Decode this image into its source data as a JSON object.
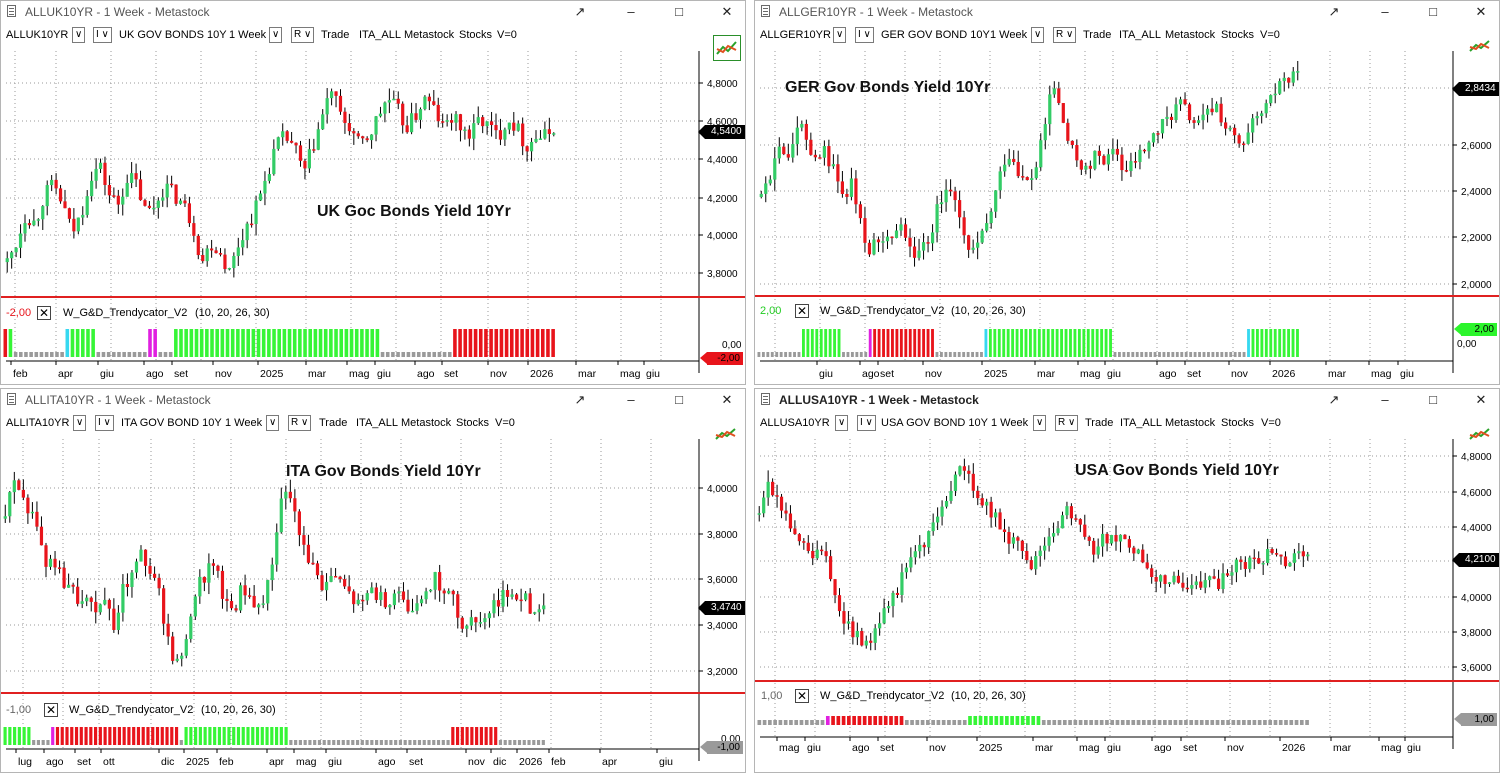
{
  "colors": {
    "up": "#33cc66",
    "down": "#e8141b",
    "separator": "#e02020",
    "ind_green": "#36f536",
    "ind_red": "#e8141b",
    "ind_gray": "#9a9a9a",
    "ind_magenta": "#e020e0",
    "ind_cyan": "#36d8f0"
  },
  "windows": [
    {
      "id": "uk",
      "title": "ALLUK10YR - 1 Week - Metastock",
      "symbol": "ALLUK10YR",
      "interval_box": "I",
      "name": "UK GOV BONDS 10Y",
      "period": "1 Week",
      "mode_box": "R",
      "trade": "Trade",
      "list": "ITA_ALL",
      "source": "Metastock",
      "group": "Stocks",
      "version": "V=0",
      "annotation": "UK Goc Bonds Yield 10Yr",
      "price_tag": "4,5400",
      "y_ticks": [
        "4,8000",
        "4,6000",
        "4,4000",
        "4,2000",
        "4,0000",
        "3,8000"
      ],
      "indicator_value": "-2,00",
      "indicator_name": "W_G&D_Trendycator_V2",
      "indicator_params": "(10,  20,  26,  30)",
      "indicator_zero": "0,00",
      "indicator_tag": "-2,00",
      "indicator_tag_color": "red",
      "x_labels": [
        "feb",
        "apr",
        "giu",
        "ago",
        "set",
        "nov",
        "2025",
        "mar",
        "mag",
        "giu",
        "ago",
        "set",
        "nov",
        "2026",
        "mar",
        "mag",
        "giu"
      ]
    },
    {
      "id": "ger",
      "title": "ALLGER10YR - 1 Week - Metastock",
      "symbol": "ALLGER10YR",
      "interval_box": "I",
      "name": "GER GOV BOND 10Y",
      "period": "1 Week",
      "mode_box": "R",
      "trade": "Trade",
      "list": "ITA_ALL",
      "source": "Metastock",
      "group": "Stocks",
      "version": "V=0",
      "annotation": "GER Gov Bonds Yield 10Yr",
      "price_tag": "2,8434",
      "y_ticks": [
        "2,8000",
        "2,6000",
        "2,4000",
        "2,2000",
        "2,0000"
      ],
      "indicator_value": "2,00",
      "indicator_name": "W_G&D_Trendycator_V2",
      "indicator_params": "(10,  20,  26,  30)",
      "indicator_zero": "0,00",
      "indicator_tag": "2,00",
      "indicator_tag_color": "green",
      "x_labels": [
        "giu",
        "ago",
        "set",
        "nov",
        "2025",
        "mar",
        "mag",
        "giu",
        "ago",
        "set",
        "nov",
        "2026",
        "mar",
        "mag",
        "giu"
      ]
    },
    {
      "id": "ita",
      "title": "ALLITA10YR - 1 Week - Metastock",
      "symbol": "ALLITA10YR",
      "interval_box": "I",
      "name": "ITA GOV BOND 10Y",
      "period": "1 Week",
      "mode_box": "R",
      "trade": "Trade",
      "list": "ITA_ALL",
      "source": "Metastock",
      "group": "Stocks",
      "version": "V=0",
      "annotation": "ITA Gov Bonds Yield 10Yr",
      "price_tag": "3,4740",
      "y_ticks": [
        "4,0000",
        "3,8000",
        "3,6000",
        "3,4000",
        "3,2000"
      ],
      "indicator_value": "-1,00",
      "indicator_name": "W_G&D_Trendycator_V2",
      "indicator_params": "(10,  20,  26,  30)",
      "indicator_zero": "0,00",
      "indicator_tag": "-1,00",
      "indicator_tag_color": "gray",
      "x_labels": [
        "lug",
        "ago",
        "set",
        "ott",
        "dic",
        "2025",
        "feb",
        "apr",
        "mag",
        "giu",
        "ago",
        "set",
        "nov",
        "dic",
        "2026",
        "feb",
        "apr",
        "giu"
      ]
    },
    {
      "id": "usa",
      "title": "ALLUSA10YR - 1 Week - Metastock",
      "symbol": "ALLUSA10YR",
      "interval_box": "I",
      "name": "USA GOV BOND 10Y",
      "period": "1 Week",
      "mode_box": "R",
      "trade": "Trade",
      "list": "ITA_ALL",
      "source": "Metastock",
      "group": "Stocks",
      "version": "V=0",
      "annotation": "USA Gov Bonds Yield 10Yr",
      "price_tag": "4,2100",
      "y_ticks": [
        "4,8000",
        "4,6000",
        "4,4000",
        "4,2000",
        "4,0000",
        "3,8000",
        "3,6000"
      ],
      "indicator_value": "1,00",
      "indicator_name": "W_G&D_Trendycator_V2",
      "indicator_params": "(10,  20,  26,  30)",
      "indicator_zero": "0,00",
      "indicator_tag": "1,00",
      "indicator_tag_color": "gray",
      "x_labels": [
        "mag",
        "giu",
        "ago",
        "set",
        "nov",
        "2025",
        "mar",
        "mag",
        "giu",
        "ago",
        "set",
        "nov",
        "2026",
        "mar",
        "mag",
        "giu"
      ]
    }
  ]
}
